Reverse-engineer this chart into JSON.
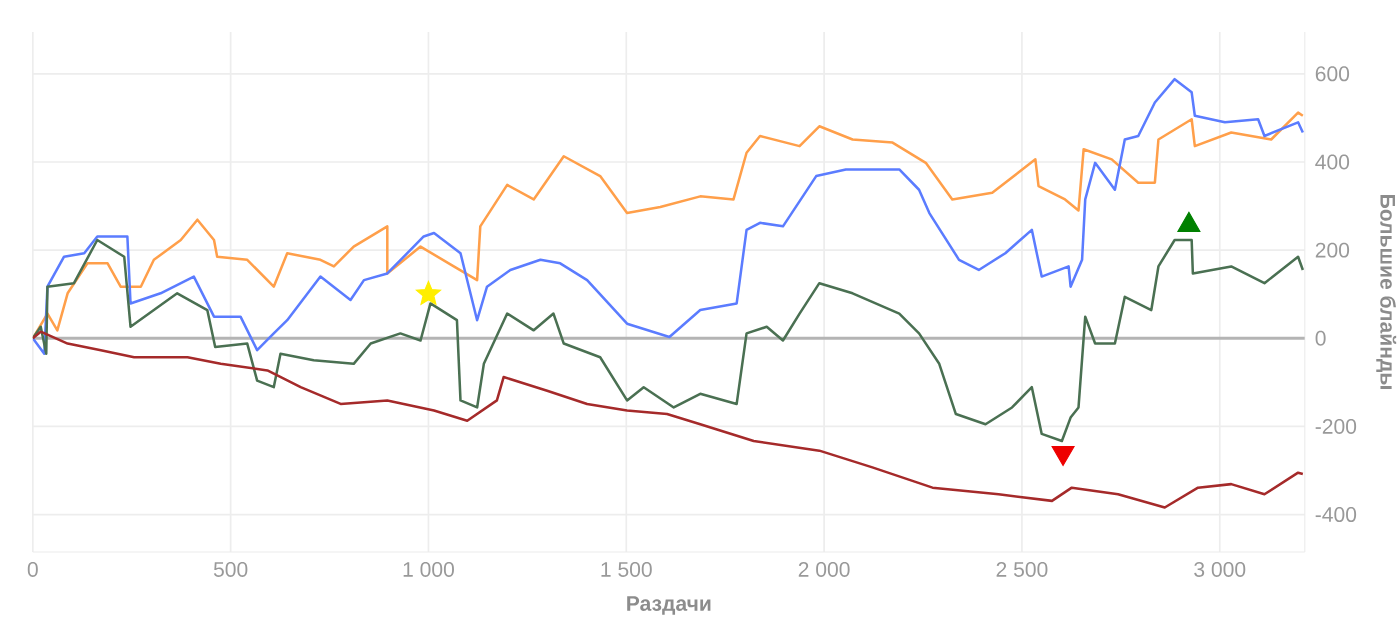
{
  "chart_data": {
    "type": "line",
    "xlabel": "Раздачи",
    "ylabel": "Большие блайнды",
    "xlim": [
      0,
      3215
    ],
    "ylim": [
      -485,
      695
    ],
    "xticks": [
      0,
      500,
      {
        "value": 1000,
        "label": "1 000"
      },
      {
        "value": 1500,
        "label": "1 500"
      },
      {
        "value": 2000,
        "label": "2 000"
      },
      {
        "value": 2500,
        "label": "2 500"
      },
      {
        "value": 3000,
        "label": "3 000"
      }
    ],
    "yticks": [
      -400,
      -200,
      0,
      200,
      400,
      600
    ],
    "grid": true,
    "marker": "none",
    "line_style": "solid",
    "ref_lines": [
      {
        "axis": "y",
        "value": 0,
        "color": "#b4b4b4"
      }
    ],
    "series": [
      {
        "color": "#ff9f4a",
        "x": [
          0,
          37,
          62,
          88,
          138,
          189,
          222,
          273,
          306,
          374,
          416,
          458,
          466,
          542,
          609,
          643,
          727,
          761,
          811,
          896,
          896,
          980,
          1064,
          1123,
          1131,
          1199,
          1266,
          1342,
          1434,
          1502,
          1586,
          1687,
          1771,
          1804,
          1838,
          1938,
          1988,
          2072,
          2173,
          2257,
          2324,
          2425,
          2534,
          2542,
          2609,
          2643,
          2656,
          2727,
          2794,
          2836,
          2845,
          2929,
          2937,
          3029,
          3130,
          3198,
          3210
        ],
        "values": [
          0,
          56,
          18,
          102,
          170,
          170,
          117,
          117,
          178,
          223,
          269,
          223,
          185,
          178,
          117,
          193,
          178,
          163,
          208,
          254,
          147,
          208,
          163,
          132,
          254,
          348,
          315,
          413,
          368,
          284,
          298,
          322,
          315,
          421,
          459,
          436,
          481,
          451,
          444,
          398,
          315,
          330,
          406,
          345,
          315,
          290,
          429,
          406,
          353,
          353,
          451,
          497,
          436,
          467,
          451,
          512,
          505
        ]
      },
      {
        "color": "#5b7cff",
        "x": [
          0,
          29,
          37,
          79,
          130,
          163,
          239,
          247,
          323,
          407,
          458,
          525,
          567,
          609,
          643,
          727,
          803,
          837,
          896,
          988,
          1014,
          1081,
          1123,
          1148,
          1207,
          1283,
          1333,
          1401,
          1502,
          1609,
          1687,
          1779,
          1804,
          1838,
          1896,
          1980,
          2055,
          2190,
          2240,
          2266,
          2341,
          2391,
          2458,
          2525,
          2550,
          2618,
          2623,
          2652,
          2660,
          2685,
          2735,
          2760,
          2794,
          2836,
          2886,
          2929,
          2937,
          3013,
          3097,
          3113,
          3198,
          3210
        ],
        "values": [
          0,
          -35,
          117,
          185,
          193,
          231,
          231,
          79,
          102,
          140,
          49,
          49,
          -27,
          11,
          41,
          140,
          87,
          132,
          147,
          231,
          239,
          193,
          41,
          117,
          155,
          178,
          170,
          132,
          33,
          3,
          64,
          79,
          246,
          262,
          254,
          368,
          383,
          383,
          337,
          284,
          178,
          155,
          193,
          246,
          140,
          163,
          117,
          178,
          315,
          398,
          337,
          451,
          459,
          535,
          588,
          558,
          505,
          490,
          497,
          459,
          490,
          467
        ]
      },
      {
        "color": "#4a7052",
        "x": [
          0,
          20,
          34,
          37,
          104,
          163,
          231,
          247,
          306,
          365,
          441,
          461,
          542,
          567,
          609,
          626,
          710,
          811,
          854,
          929,
          980,
          1005,
          1072,
          1081,
          1123,
          1140,
          1199,
          1266,
          1316,
          1342,
          1434,
          1502,
          1544,
          1620,
          1687,
          1779,
          1804,
          1855,
          1896,
          1938,
          1988,
          2072,
          2190,
          2240,
          2291,
          2333,
          2408,
          2475,
          2525,
          2550,
          2601,
          2623,
          2643,
          2660,
          2685,
          2735,
          2760,
          2827,
          2845,
          2886,
          2929,
          2932,
          3029,
          3113,
          3198,
          3210
        ],
        "values": [
          0,
          26,
          -35,
          117,
          125,
          223,
          185,
          26,
          64,
          102,
          64,
          -20,
          -12,
          -96,
          -111,
          -35,
          -50,
          -58,
          -12,
          11,
          -5,
          79,
          41,
          -141,
          -157,
          -58,
          56,
          18,
          56,
          -12,
          -43,
          -141,
          -111,
          -157,
          -126,
          -149,
          11,
          26,
          -5,
          56,
          125,
          102,
          56,
          11,
          -58,
          -172,
          -195,
          -157,
          -111,
          -217,
          -233,
          -180,
          -157,
          49,
          -12,
          -12,
          94,
          64,
          163,
          223,
          223,
          147,
          163,
          125,
          185,
          155
        ]
      },
      {
        "color": "#a52a2a",
        "x": [
          0,
          20,
          88,
          172,
          256,
          391,
          475,
          593,
          677,
          778,
          896,
          1014,
          1098,
          1173,
          1190,
          1300,
          1401,
          1502,
          1603,
          1687,
          1822,
          1988,
          2122,
          2274,
          2441,
          2576,
          2626,
          2743,
          2861,
          2945,
          3029,
          3113,
          3198,
          3210
        ],
        "values": [
          0,
          15,
          -12,
          -27,
          -43,
          -43,
          -58,
          -73,
          -111,
          -149,
          -141,
          -164,
          -187,
          -141,
          -88,
          -119,
          -149,
          -164,
          -172,
          -195,
          -233,
          -255,
          -293,
          -339,
          -354,
          -369,
          -339,
          -354,
          -384,
          -339,
          -331,
          -354,
          -305,
          -308
        ]
      },
      {
        "type": "scatter",
        "marker": "star",
        "color": "#ffee00",
        "x": [
          1000
        ],
        "values": [
          100
        ]
      },
      {
        "type": "scatter",
        "marker": "triangle-down",
        "color": "#ee0000",
        "x": [
          2604
        ],
        "values": [
          -260
        ]
      },
      {
        "type": "scatter",
        "marker": "triangle",
        "color": "#008000",
        "x": [
          2922
        ],
        "values": [
          257
        ]
      }
    ]
  }
}
